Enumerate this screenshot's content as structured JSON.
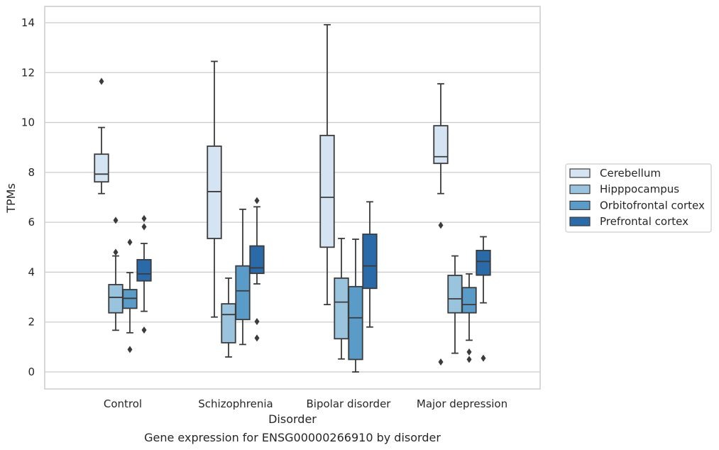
{
  "chart_data": {
    "type": "box",
    "caption": "Gene expression for ENSG00000266910 by disorder",
    "xlabel": "Disorder",
    "ylabel": "TPMs",
    "ylim": [
      -0.65,
      14.65
    ],
    "yticks": [
      0,
      2,
      4,
      6,
      8,
      10,
      12,
      14
    ],
    "grid": "horizontal",
    "legend_position": "right",
    "categories": [
      "Control",
      "Schizophrenia",
      "Bipolar disorder",
      "Major depression"
    ],
    "series": [
      {
        "name": "Cerebellum",
        "color": "#d5e4f3",
        "boxes": [
          {
            "whisker_low": 7.15,
            "q1": 7.62,
            "median": 7.93,
            "q3": 8.73,
            "whisker_high": 9.8,
            "outliers": [
              11.65
            ]
          },
          {
            "whisker_low": 2.2,
            "q1": 5.35,
            "median": 7.23,
            "q3": 9.05,
            "whisker_high": 12.45,
            "outliers": []
          },
          {
            "whisker_low": 2.7,
            "q1": 5.0,
            "median": 7.0,
            "q3": 9.48,
            "whisker_high": 13.92,
            "outliers": []
          },
          {
            "whisker_low": 7.15,
            "q1": 8.36,
            "median": 8.63,
            "q3": 9.87,
            "whisker_high": 11.55,
            "outliers": [
              5.88,
              0.4
            ]
          }
        ]
      },
      {
        "name": "Hipppocampus",
        "color": "#9ac3dd",
        "boxes": [
          {
            "whisker_low": 1.67,
            "q1": 2.37,
            "median": 2.99,
            "q3": 3.5,
            "whisker_high": 4.65,
            "outliers": [
              6.08,
              4.8
            ]
          },
          {
            "whisker_low": 0.6,
            "q1": 1.17,
            "median": 2.3,
            "q3": 2.73,
            "whisker_high": 3.76,
            "outliers": []
          },
          {
            "whisker_low": 0.52,
            "q1": 1.33,
            "median": 2.8,
            "q3": 3.76,
            "whisker_high": 5.35,
            "outliers": []
          },
          {
            "whisker_low": 0.75,
            "q1": 2.37,
            "median": 2.93,
            "q3": 3.87,
            "whisker_high": 4.65,
            "outliers": []
          }
        ]
      },
      {
        "name": "Orbitofrontal cortex",
        "color": "#5b9bc8",
        "boxes": [
          {
            "whisker_low": 1.57,
            "q1": 2.55,
            "median": 2.95,
            "q3": 3.3,
            "whisker_high": 3.98,
            "outliers": [
              5.2,
              0.9
            ]
          },
          {
            "whisker_low": 1.1,
            "q1": 2.1,
            "median": 3.25,
            "q3": 4.25,
            "whisker_high": 6.52,
            "outliers": []
          },
          {
            "whisker_low": 0.0,
            "q1": 0.5,
            "median": 2.17,
            "q3": 3.42,
            "whisker_high": 5.32,
            "outliers": []
          },
          {
            "whisker_low": 1.27,
            "q1": 2.37,
            "median": 2.7,
            "q3": 3.38,
            "whisker_high": 3.93,
            "outliers": [
              0.8,
              0.5
            ]
          }
        ]
      },
      {
        "name": "Prefrontal cortex",
        "color": "#2a6aa9",
        "boxes": [
          {
            "whisker_low": 2.43,
            "q1": 3.65,
            "median": 3.93,
            "q3": 4.5,
            "whisker_high": 5.15,
            "outliers": [
              6.15,
              5.82,
              1.68
            ]
          },
          {
            "whisker_low": 3.53,
            "q1": 3.95,
            "median": 4.17,
            "q3": 5.05,
            "whisker_high": 6.62,
            "outliers": [
              6.87,
              2.02,
              1.36
            ]
          },
          {
            "whisker_low": 1.8,
            "q1": 3.35,
            "median": 4.25,
            "q3": 5.52,
            "whisker_high": 6.82,
            "outliers": []
          },
          {
            "whisker_low": 2.77,
            "q1": 3.88,
            "median": 4.43,
            "q3": 4.87,
            "whisker_high": 5.42,
            "outliers": [
              0.55
            ]
          }
        ]
      }
    ]
  }
}
